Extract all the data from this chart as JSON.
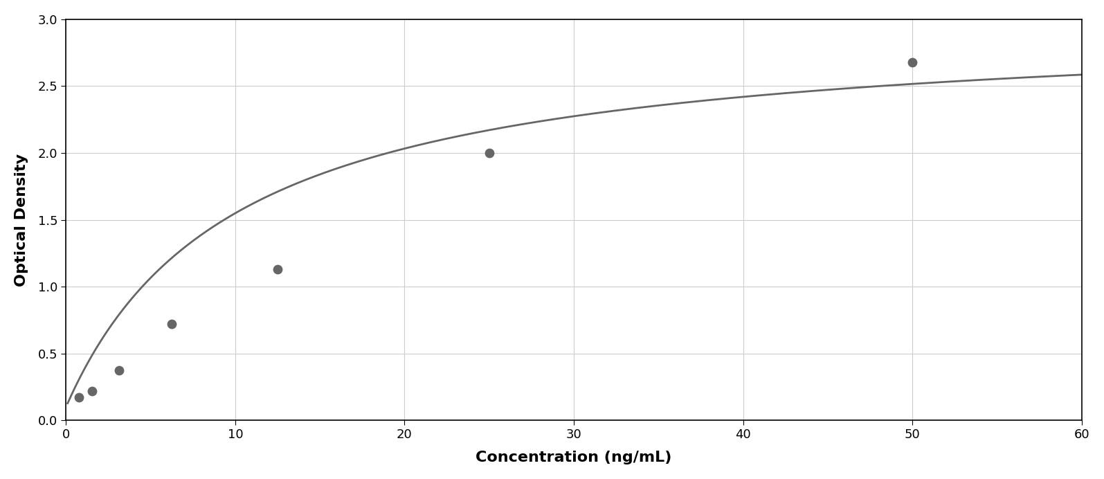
{
  "x_data": [
    0.78,
    1.56,
    3.13,
    6.25,
    12.5,
    25.0,
    50.0
  ],
  "y_data": [
    0.175,
    0.22,
    0.375,
    0.72,
    1.13,
    2.0,
    2.68
  ],
  "xlabel": "Concentration (ng/mL)",
  "ylabel": "Optical Density",
  "xlim": [
    0,
    60
  ],
  "ylim": [
    0,
    3
  ],
  "xticks": [
    0,
    10,
    20,
    30,
    40,
    50,
    60
  ],
  "yticks": [
    0,
    0.5,
    1.0,
    1.5,
    2.0,
    2.5,
    3.0
  ],
  "point_color": "#666666",
  "line_color": "#666666",
  "grid_color": "#cccccc",
  "background_color": "#ffffff",
  "border_color": "#000000",
  "point_size": 80,
  "line_width": 2.0,
  "xlabel_fontsize": 16,
  "ylabel_fontsize": 16,
  "tick_fontsize": 13,
  "xlabel_fontweight": "bold",
  "ylabel_fontweight": "bold"
}
